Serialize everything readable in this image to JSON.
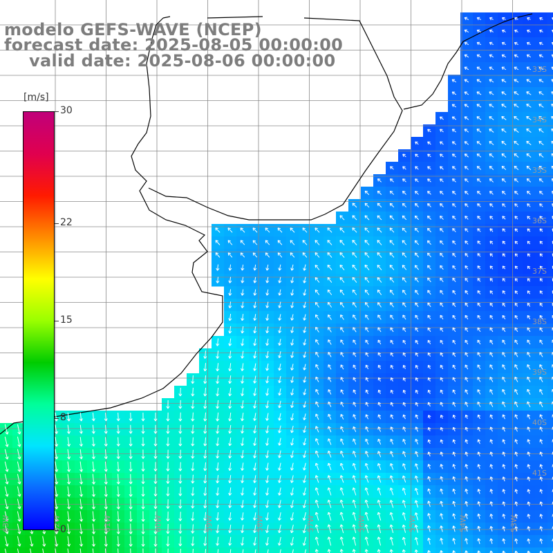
{
  "title": {
    "line1": "modelo GEFS-WAVE (NCEP)",
    "line2": "forecast date: 2025-08-05 00:00:00",
    "line3": "valid date: 2025-08-06 00:00:00"
  },
  "legend": {
    "unit": "[m/s]",
    "min": 0,
    "max": 30,
    "ticks": [
      {
        "value": 30,
        "label": "30"
      },
      {
        "value": 22,
        "label": "22"
      },
      {
        "value": 15,
        "label": "15"
      },
      {
        "value": 8,
        "label": "8"
      },
      {
        "value": 0,
        "label": "0"
      }
    ],
    "colors": [
      "#0000ff",
      "#0a6cff",
      "#00e5ff",
      "#00ff9a",
      "#00cc00",
      "#9aff00",
      "#ffff00",
      "#ff8c00",
      "#ff1a00",
      "#e0004f",
      "#c0007a"
    ]
  },
  "map": {
    "lat_labels": [
      "33S",
      "34S",
      "35S",
      "36S",
      "37S",
      "38S",
      "39S",
      "40S",
      "41S"
    ],
    "lon_labels": [
      "63W",
      "62W",
      "61W",
      "60W",
      "59W",
      "58W",
      "57W",
      "56W",
      "55W",
      "54W",
      "53W"
    ],
    "colors": {
      "land": "#ffffff",
      "grid": "#888888",
      "coast": "#000000",
      "arrow": "#ffffff"
    }
  }
}
